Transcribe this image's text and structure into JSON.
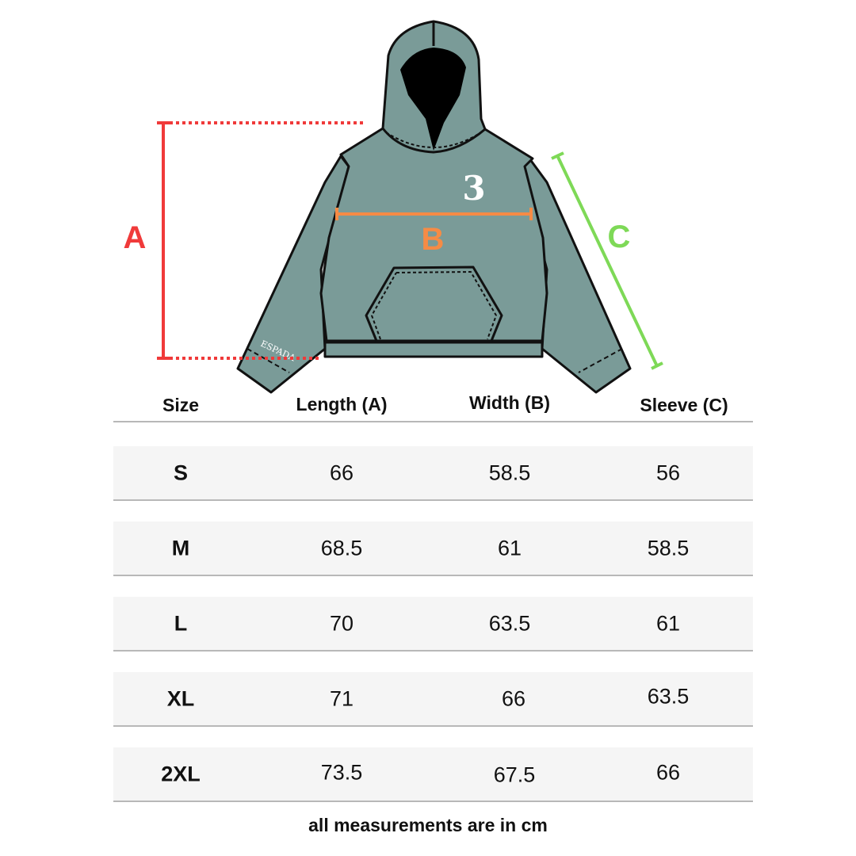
{
  "diagram": {
    "labels": {
      "a": "A",
      "b": "B",
      "c": "C"
    },
    "sleeve_print": "ESPADA",
    "chest_logo": "3",
    "colors": {
      "a": "#f03a3a",
      "b": "#f68b45",
      "c": "#7ed957",
      "garment": "#7a9b98"
    }
  },
  "table": {
    "headers": [
      "Size",
      "Length (A)",
      "Width (B)",
      "Sleeve (C)"
    ],
    "rows": [
      [
        "S",
        "66",
        "58.5",
        "56"
      ],
      [
        "M",
        "68.5",
        "61",
        "58.5"
      ],
      [
        "L",
        "70",
        "63.5",
        "61"
      ],
      [
        "XL",
        "71",
        "66",
        "63.5"
      ],
      [
        "2XL",
        "73.5",
        "67.5",
        "66"
      ]
    ]
  },
  "footer": "all measurements are in cm"
}
